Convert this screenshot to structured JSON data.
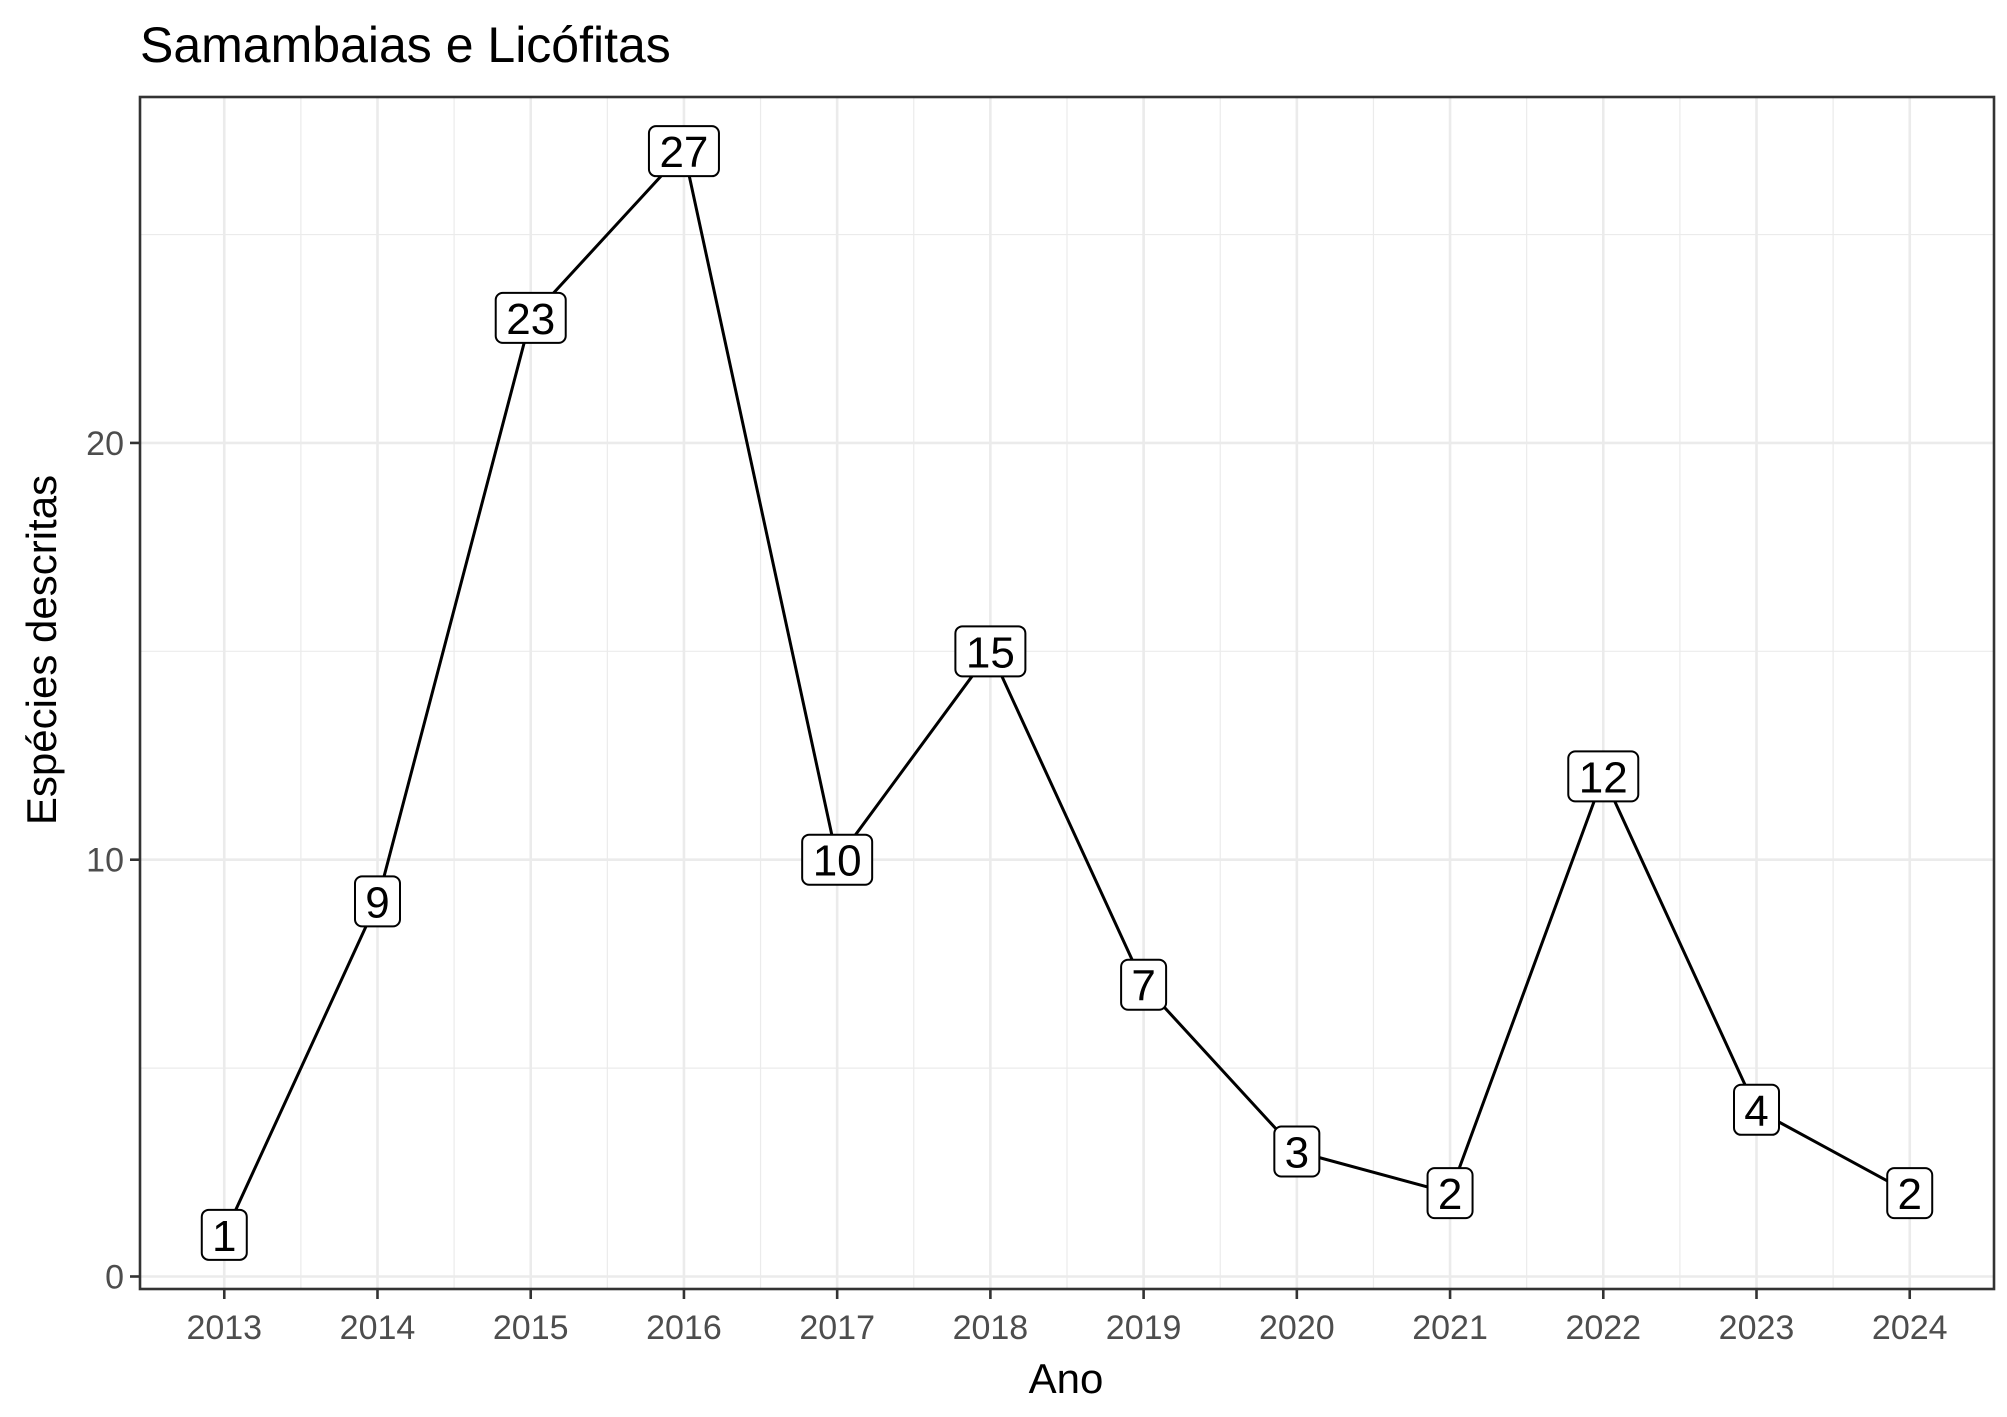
{
  "chart_data": {
    "type": "line",
    "title": "Samambaias e Licófitas",
    "xlabel": "Ano",
    "ylabel": "Espécies descritas",
    "x": [
      2013,
      2014,
      2015,
      2016,
      2017,
      2018,
      2019,
      2020,
      2021,
      2022,
      2023,
      2024
    ],
    "values": [
      1,
      9,
      23,
      27,
      10,
      15,
      7,
      3,
      2,
      12,
      4,
      2
    ],
    "x_tick_labels": [
      "2013",
      "2014",
      "2015",
      "2016",
      "2017",
      "2018",
      "2019",
      "2020",
      "2021",
      "2022",
      "2023",
      "2024"
    ],
    "y_ticks": [
      0,
      10,
      20
    ],
    "y_tick_labels": [
      "0",
      "10",
      "20"
    ],
    "ylim": [
      -0.3,
      28.3
    ],
    "xlim": [
      2012.45,
      2024.55
    ],
    "grid": true,
    "data_labels": true,
    "colors": {
      "line": "#000000",
      "grid": "#ebebeb",
      "panel_border": "#333333",
      "label_fill": "#ffffff"
    }
  }
}
